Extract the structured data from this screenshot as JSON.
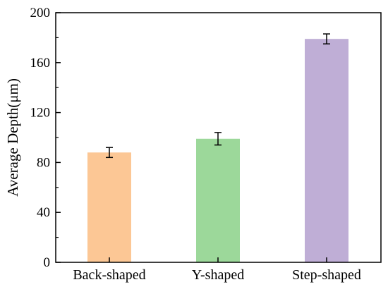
{
  "chart_data": {
    "type": "bar",
    "title": "",
    "xlabel": "",
    "ylabel": "Average Depth(μm)",
    "categories": [
      "Back-shaped",
      "Y-shaped",
      "Step-shaped"
    ],
    "values": [
      88,
      99,
      179
    ],
    "errors": [
      4,
      5,
      4
    ],
    "colors": [
      "#fcc795",
      "#9cd89a",
      "#bfaed6"
    ],
    "ylim": [
      0,
      200
    ],
    "yticks": [
      0,
      40,
      80,
      120,
      160,
      200
    ],
    "ytick_labels": [
      "0",
      "40",
      "80",
      "120",
      "160",
      "200"
    ],
    "grid": false,
    "legend": "none"
  }
}
